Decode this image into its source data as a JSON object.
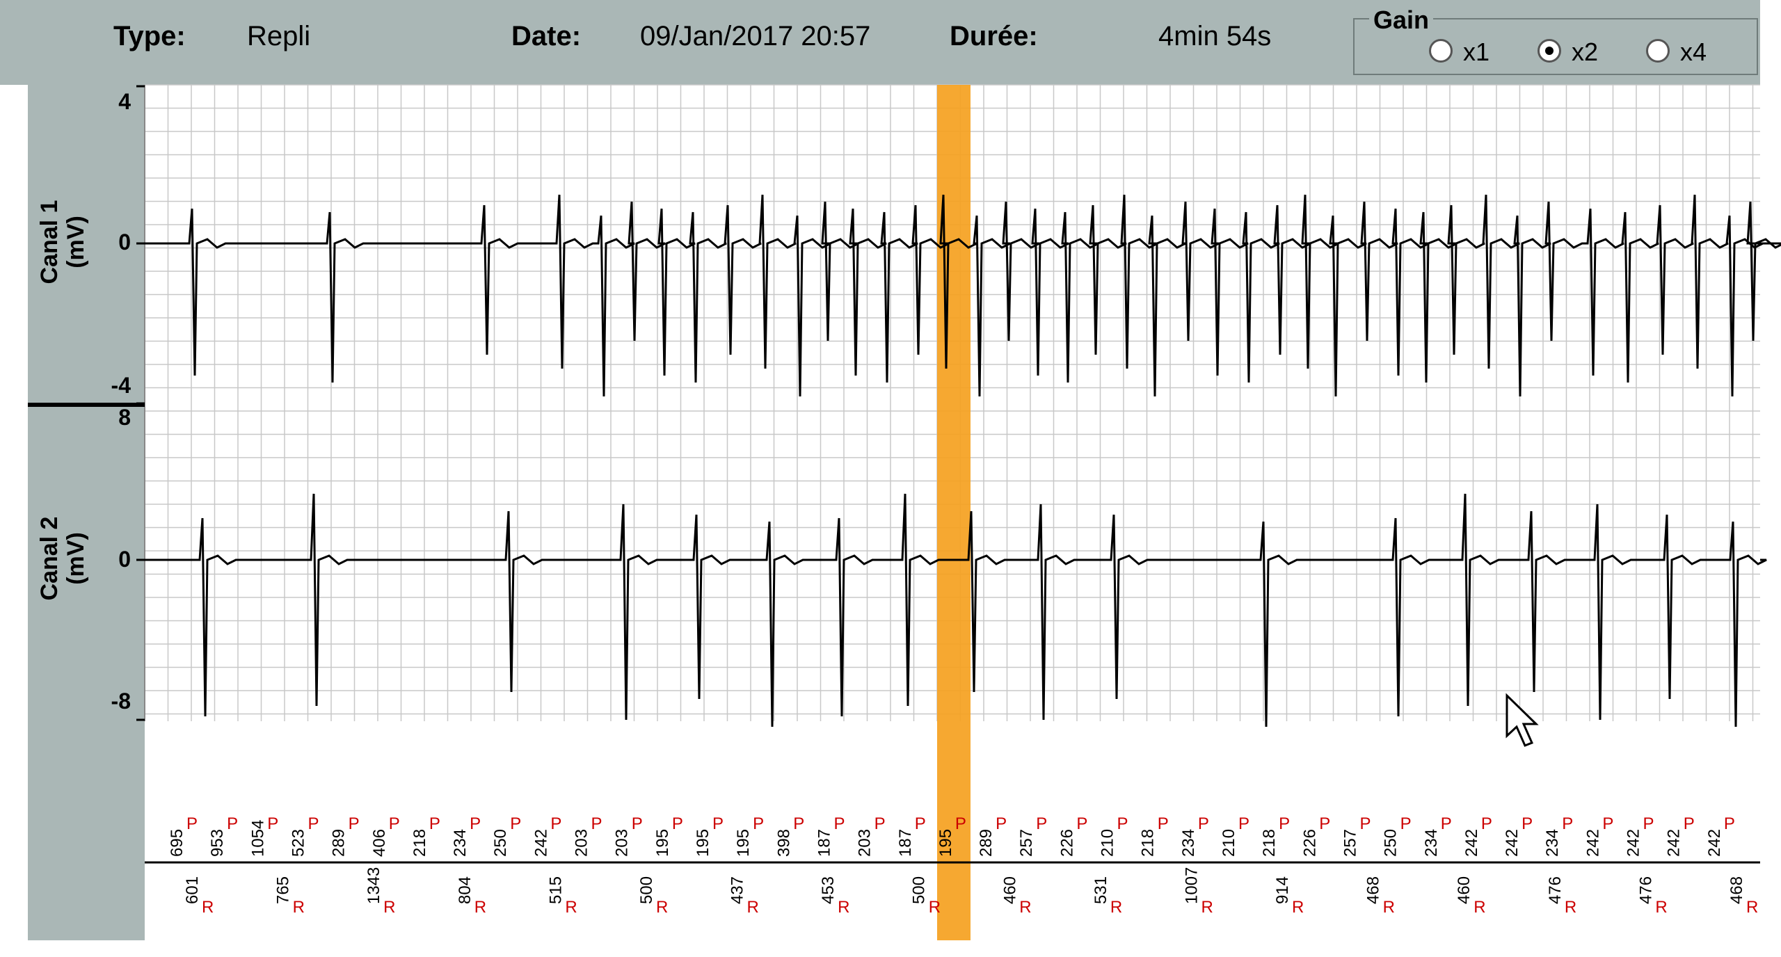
{
  "header": {
    "type_label": "Type:",
    "type_value": "Repli",
    "date_label": "Date:",
    "date_value": "09/Jan/2017 20:57",
    "duration_label": "Durée:",
    "duration_value": "4min 54s"
  },
  "gain": {
    "title": "Gain",
    "options": [
      "x1",
      "x2",
      "x4"
    ],
    "selected": "x2"
  },
  "channels": [
    {
      "name": "Canal 1",
      "unit": "(mV)",
      "ticks": [
        "4",
        "0",
        "-4"
      ]
    },
    {
      "name": "Canal 2",
      "unit": "(mV)",
      "ticks": [
        "8",
        "0",
        "-8"
      ]
    }
  ],
  "colors": {
    "panel_bg": "#aab7b6",
    "grid": "#c8c8c8",
    "trace": "#000000",
    "highlight": "#f5a11f",
    "marker_red": "#cc0000"
  },
  "top_markers": [
    {
      "v": "695",
      "l": "P"
    },
    {
      "v": "953",
      "l": "P"
    },
    {
      "v": "1054",
      "l": "P"
    },
    {
      "v": "523",
      "l": "P"
    },
    {
      "v": "289",
      "l": "P"
    },
    {
      "v": "406",
      "l": "P"
    },
    {
      "v": "218",
      "l": "P"
    },
    {
      "v": "234",
      "l": "P"
    },
    {
      "v": "250",
      "l": "P"
    },
    {
      "v": "242",
      "l": "P"
    },
    {
      "v": "203",
      "l": "P"
    },
    {
      "v": "203",
      "l": "P"
    },
    {
      "v": "195",
      "l": "P"
    },
    {
      "v": "195",
      "l": "P"
    },
    {
      "v": "195",
      "l": "P"
    },
    {
      "v": "398",
      "l": "P"
    },
    {
      "v": "187",
      "l": "P"
    },
    {
      "v": "203",
      "l": "P"
    },
    {
      "v": "187",
      "l": "P"
    },
    {
      "v": "195",
      "l": "P"
    },
    {
      "v": "289",
      "l": "P"
    },
    {
      "v": "257",
      "l": "P"
    },
    {
      "v": "226",
      "l": "P"
    },
    {
      "v": "210",
      "l": "P"
    },
    {
      "v": "218",
      "l": "P"
    },
    {
      "v": "234",
      "l": "P"
    },
    {
      "v": "210",
      "l": "P"
    },
    {
      "v": "218",
      "l": "P"
    },
    {
      "v": "226",
      "l": "P"
    },
    {
      "v": "257",
      "l": "P"
    },
    {
      "v": "250",
      "l": "P"
    },
    {
      "v": "234",
      "l": "P"
    },
    {
      "v": "242",
      "l": "P"
    },
    {
      "v": "242",
      "l": "P"
    },
    {
      "v": "234",
      "l": "P"
    },
    {
      "v": "242",
      "l": "P"
    },
    {
      "v": "242",
      "l": "P"
    },
    {
      "v": "242",
      "l": "P"
    },
    {
      "v": "242",
      "l": "P"
    }
  ],
  "bottom_markers": [
    {
      "v": "601",
      "l": "R"
    },
    {
      "v": "765",
      "l": "R"
    },
    {
      "v": "1343",
      "l": "R"
    },
    {
      "v": "804",
      "l": "R"
    },
    {
      "v": "515",
      "l": "R"
    },
    {
      "v": "500",
      "l": "R"
    },
    {
      "v": "437",
      "l": "R"
    },
    {
      "v": "453",
      "l": "R"
    },
    {
      "v": "500",
      "l": "R"
    },
    {
      "v": "460",
      "l": "R"
    },
    {
      "v": "531",
      "l": "R"
    },
    {
      "v": "1007",
      "l": "R"
    },
    {
      "v": "914",
      "l": "R"
    },
    {
      "v": "468",
      "l": "R"
    },
    {
      "v": "460",
      "l": "R"
    },
    {
      "v": "476",
      "l": "R"
    },
    {
      "v": "476",
      "l": "R"
    },
    {
      "v": "468",
      "l": "R"
    }
  ]
}
